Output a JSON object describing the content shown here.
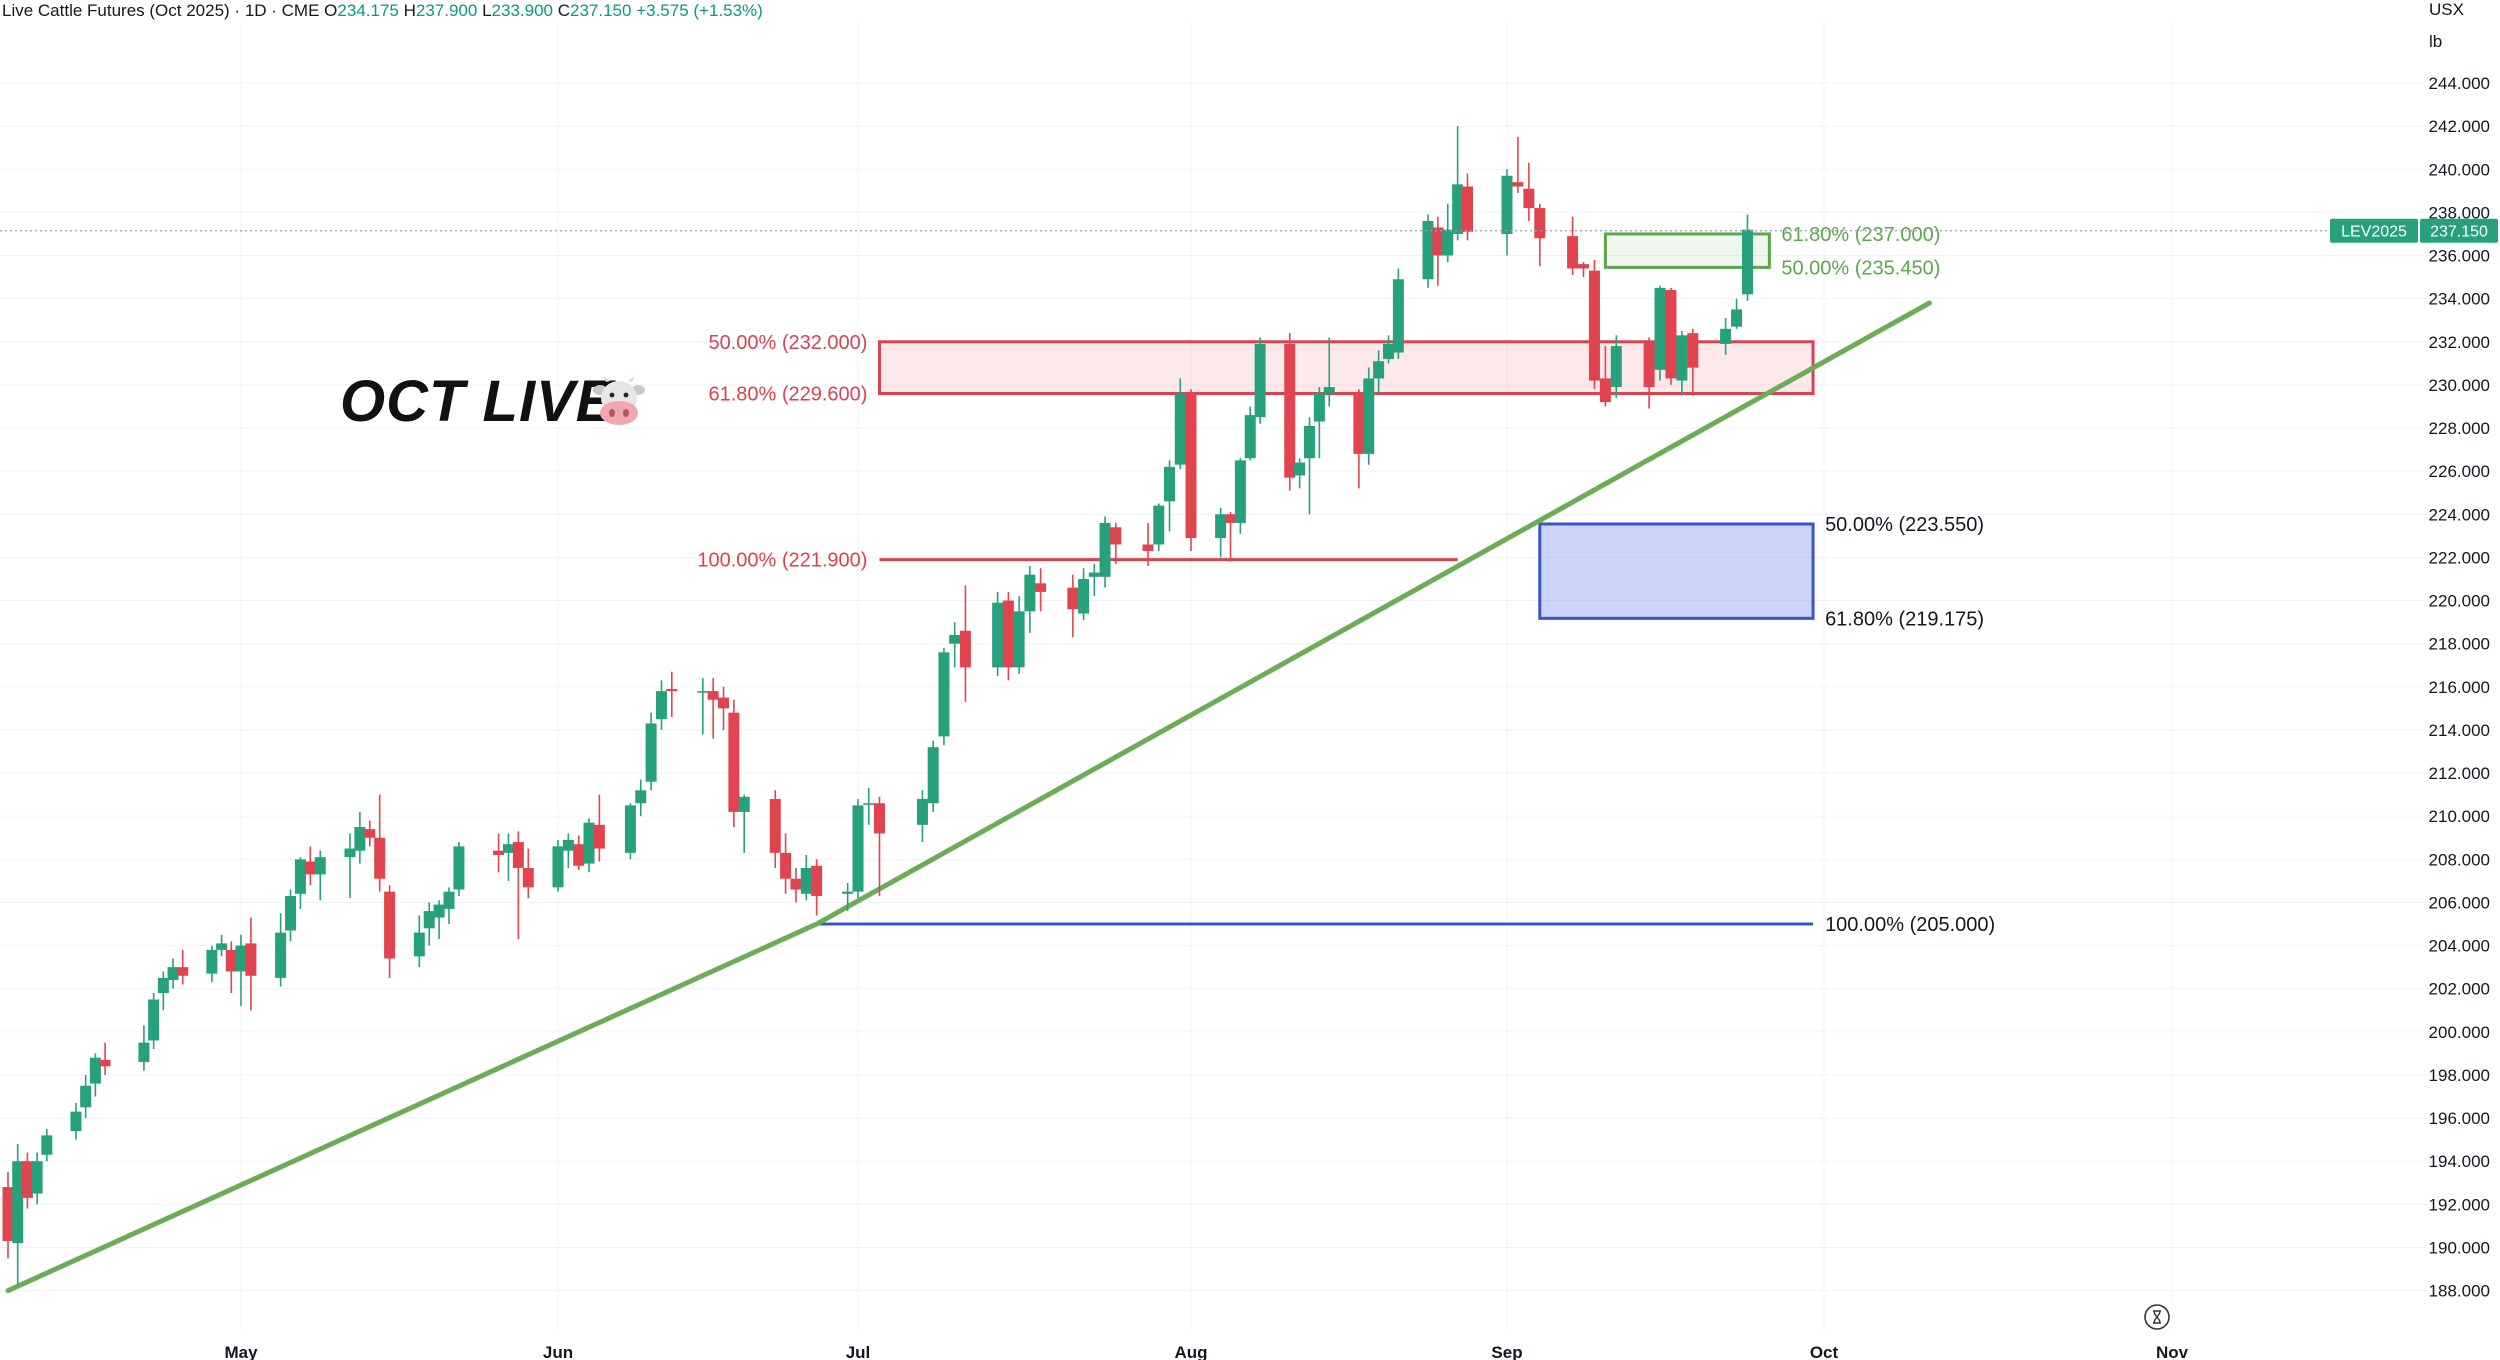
{
  "header": {
    "symbol": "Live Cattle Futures (Oct 2025) · 1D · CME",
    "open_label": "O",
    "open": "234.175",
    "high_label": "H",
    "high": "237.900",
    "low_label": "L",
    "low": "233.900",
    "close_label": "C",
    "close": "237.150",
    "change": "+3.575 (+1.53%)"
  },
  "watermark": "OCT LIVE",
  "units": {
    "top": "USX",
    "bottom": "lb"
  },
  "price_tag": {
    "name": "LEV2025",
    "value": "237.150",
    "price": 237.15
  },
  "colors": {
    "up": "#26a17b",
    "down": "#e0454f",
    "red_zone": "#d9434f",
    "green_zone": "#5ca74d",
    "blue_zone": "#3a55c8",
    "trend": "#6aad55"
  },
  "chart_data": {
    "type": "candlestick",
    "title": "Live Cattle Futures (Oct 2025) · 1D · CME",
    "ylim": [
      187,
      245
    ],
    "y_ticks": [
      "188.000",
      "190.000",
      "192.000",
      "194.000",
      "196.000",
      "198.000",
      "200.000",
      "202.000",
      "204.000",
      "206.000",
      "208.000",
      "210.000",
      "212.000",
      "214.000",
      "216.000",
      "218.000",
      "220.000",
      "222.000",
      "224.000",
      "226.000",
      "228.000",
      "230.000",
      "232.000",
      "234.000",
      "236.000",
      "238.000",
      "240.000",
      "242.000",
      "244.000"
    ],
    "x_ticks": [
      {
        "label": "May",
        "date": "2025-05-01"
      },
      {
        "label": "Jun",
        "date": "2025-06-02"
      },
      {
        "label": "Jul",
        "date": "2025-07-01"
      },
      {
        "label": "Aug",
        "date": "2025-08-01"
      },
      {
        "label": "Sep",
        "date": "2025-09-02"
      },
      {
        "label": "Oct",
        "date": "2025-10-01"
      },
      {
        "label": "Nov",
        "date": "2025-11-03"
      }
    ],
    "candles": [
      {
        "date": "2025-04-07",
        "o": 192.8,
        "h": 193.5,
        "l": 189.5,
        "c": 190.3
      },
      {
        "date": "2025-04-08",
        "o": 190.2,
        "h": 194.8,
        "l": 188.3,
        "c": 194.0
      },
      {
        "date": "2025-04-09",
        "o": 194.0,
        "h": 194.4,
        "l": 191.8,
        "c": 192.3
      },
      {
        "date": "2025-04-10",
        "o": 192.5,
        "h": 194.4,
        "l": 192.0,
        "c": 194.0
      },
      {
        "date": "2025-04-11",
        "o": 194.3,
        "h": 195.5,
        "l": 194.0,
        "c": 195.2
      },
      {
        "date": "2025-04-14",
        "o": 195.4,
        "h": 196.7,
        "l": 195.0,
        "c": 196.3
      },
      {
        "date": "2025-04-15",
        "o": 196.5,
        "h": 198.0,
        "l": 196.0,
        "c": 197.5
      },
      {
        "date": "2025-04-16",
        "o": 197.6,
        "h": 199.0,
        "l": 197.0,
        "c": 198.8
      },
      {
        "date": "2025-04-17",
        "o": 198.7,
        "h": 199.5,
        "l": 198.0,
        "c": 198.4
      },
      {
        "date": "2025-04-21",
        "o": 198.6,
        "h": 200.3,
        "l": 198.2,
        "c": 199.5
      },
      {
        "date": "2025-04-22",
        "o": 199.6,
        "h": 201.8,
        "l": 199.2,
        "c": 201.5
      },
      {
        "date": "2025-04-23",
        "o": 201.8,
        "h": 202.8,
        "l": 201.0,
        "c": 202.5
      },
      {
        "date": "2025-04-24",
        "o": 202.4,
        "h": 203.4,
        "l": 202.0,
        "c": 203.0
      },
      {
        "date": "2025-04-25",
        "o": 203.0,
        "h": 203.8,
        "l": 202.2,
        "c": 202.6
      },
      {
        "date": "2025-04-28",
        "o": 202.7,
        "h": 204.0,
        "l": 202.3,
        "c": 203.8
      },
      {
        "date": "2025-04-29",
        "o": 203.8,
        "h": 204.5,
        "l": 203.5,
        "c": 204.1
      },
      {
        "date": "2025-04-30",
        "o": 203.8,
        "h": 204.2,
        "l": 201.8,
        "c": 202.8
      },
      {
        "date": "2025-05-01",
        "o": 202.8,
        "h": 204.5,
        "l": 201.2,
        "c": 204.0
      },
      {
        "date": "2025-05-02",
        "o": 204.1,
        "h": 205.3,
        "l": 201.0,
        "c": 202.6
      },
      {
        "date": "2025-05-05",
        "o": 202.5,
        "h": 205.5,
        "l": 202.1,
        "c": 204.6
      },
      {
        "date": "2025-05-06",
        "o": 204.7,
        "h": 206.6,
        "l": 204.2,
        "c": 206.3
      },
      {
        "date": "2025-05-07",
        "o": 206.4,
        "h": 208.1,
        "l": 205.7,
        "c": 208.0
      },
      {
        "date": "2025-05-08",
        "o": 207.9,
        "h": 208.6,
        "l": 206.8,
        "c": 207.3
      },
      {
        "date": "2025-05-09",
        "o": 207.3,
        "h": 208.4,
        "l": 206.1,
        "c": 208.1
      },
      {
        "date": "2025-05-12",
        "o": 208.1,
        "h": 209.2,
        "l": 206.2,
        "c": 208.5
      },
      {
        "date": "2025-05-13",
        "o": 208.4,
        "h": 210.2,
        "l": 207.8,
        "c": 209.5
      },
      {
        "date": "2025-05-14",
        "o": 209.4,
        "h": 209.8,
        "l": 208.6,
        "c": 209.0
      },
      {
        "date": "2025-05-15",
        "o": 209.0,
        "h": 211.0,
        "l": 206.5,
        "c": 207.1
      },
      {
        "date": "2025-05-16",
        "o": 206.5,
        "h": 206.8,
        "l": 202.5,
        "c": 203.4
      },
      {
        "date": "2025-05-19",
        "o": 203.5,
        "h": 205.4,
        "l": 203.0,
        "c": 204.6
      },
      {
        "date": "2025-05-20",
        "o": 204.8,
        "h": 206.0,
        "l": 204.0,
        "c": 205.6
      },
      {
        "date": "2025-05-21",
        "o": 205.3,
        "h": 206.1,
        "l": 204.3,
        "c": 205.9
      },
      {
        "date": "2025-05-22",
        "o": 205.7,
        "h": 206.7,
        "l": 205.0,
        "c": 206.5
      },
      {
        "date": "2025-05-23",
        "o": 206.6,
        "h": 208.8,
        "l": 206.3,
        "c": 208.6
      },
      {
        "date": "2025-05-27",
        "o": 208.4,
        "h": 209.2,
        "l": 207.4,
        "c": 208.2
      },
      {
        "date": "2025-05-28",
        "o": 208.3,
        "h": 209.2,
        "l": 207.0,
        "c": 208.7
      },
      {
        "date": "2025-05-29",
        "o": 208.8,
        "h": 209.3,
        "l": 204.3,
        "c": 207.6
      },
      {
        "date": "2025-05-30",
        "o": 207.6,
        "h": 208.5,
        "l": 206.2,
        "c": 206.7
      },
      {
        "date": "2025-06-02",
        "o": 206.7,
        "h": 208.9,
        "l": 206.5,
        "c": 208.6
      },
      {
        "date": "2025-06-03",
        "o": 208.4,
        "h": 209.2,
        "l": 207.6,
        "c": 208.9
      },
      {
        "date": "2025-06-04",
        "o": 208.7,
        "h": 209.1,
        "l": 207.5,
        "c": 207.7
      },
      {
        "date": "2025-06-05",
        "o": 207.8,
        "h": 209.9,
        "l": 207.4,
        "c": 209.7
      },
      {
        "date": "2025-06-06",
        "o": 209.6,
        "h": 211.0,
        "l": 207.9,
        "c": 208.5
      },
      {
        "date": "2025-06-09",
        "o": 208.3,
        "h": 210.6,
        "l": 208.0,
        "c": 210.5
      },
      {
        "date": "2025-06-10",
        "o": 210.6,
        "h": 211.7,
        "l": 210.0,
        "c": 211.2
      },
      {
        "date": "2025-06-11",
        "o": 211.6,
        "h": 214.8,
        "l": 211.2,
        "c": 214.3
      },
      {
        "date": "2025-06-12",
        "o": 214.5,
        "h": 216.3,
        "l": 214.0,
        "c": 215.8
      },
      {
        "date": "2025-06-13",
        "o": 215.9,
        "h": 216.7,
        "l": 214.6,
        "c": 215.8
      },
      {
        "date": "2025-06-16",
        "o": 215.8,
        "h": 216.4,
        "l": 213.8,
        "c": 215.8
      },
      {
        "date": "2025-06-17",
        "o": 215.8,
        "h": 216.4,
        "l": 213.6,
        "c": 215.4
      },
      {
        "date": "2025-06-18",
        "o": 215.5,
        "h": 216.0,
        "l": 214.0,
        "c": 215.0
      },
      {
        "date": "2025-06-19",
        "o": 214.8,
        "h": 215.4,
        "l": 209.5,
        "c": 210.2
      },
      {
        "date": "2025-06-20",
        "o": 210.2,
        "h": 211.0,
        "l": 208.3,
        "c": 210.9
      },
      {
        "date": "2025-06-23",
        "o": 210.8,
        "h": 211.2,
        "l": 207.6,
        "c": 208.3
      },
      {
        "date": "2025-06-24",
        "o": 208.3,
        "h": 209.2,
        "l": 206.4,
        "c": 207.1
      },
      {
        "date": "2025-06-25",
        "o": 207.1,
        "h": 207.6,
        "l": 206.0,
        "c": 206.6
      },
      {
        "date": "2025-06-26",
        "o": 206.4,
        "h": 208.2,
        "l": 206.1,
        "c": 207.6
      },
      {
        "date": "2025-06-27",
        "o": 207.7,
        "h": 208.0,
        "l": 205.4,
        "c": 206.3
      },
      {
        "date": "2025-06-30",
        "o": 206.4,
        "h": 206.9,
        "l": 205.6,
        "c": 206.5
      },
      {
        "date": "2025-07-01",
        "o": 206.5,
        "h": 210.8,
        "l": 206.2,
        "c": 210.5
      },
      {
        "date": "2025-07-02",
        "o": 210.6,
        "h": 211.3,
        "l": 209.6,
        "c": 210.6
      },
      {
        "date": "2025-07-03",
        "o": 210.6,
        "h": 210.9,
        "l": 206.3,
        "c": 209.2
      },
      {
        "date": "2025-07-07",
        "o": 209.6,
        "h": 211.2,
        "l": 208.8,
        "c": 210.8
      },
      {
        "date": "2025-07-08",
        "o": 210.6,
        "h": 213.5,
        "l": 210.2,
        "c": 213.2
      },
      {
        "date": "2025-07-09",
        "o": 213.7,
        "h": 217.8,
        "l": 213.3,
        "c": 217.6
      },
      {
        "date": "2025-07-10",
        "o": 218.0,
        "h": 219.0,
        "l": 216.9,
        "c": 218.4
      },
      {
        "date": "2025-07-11",
        "o": 218.6,
        "h": 220.7,
        "l": 215.3,
        "c": 216.9
      },
      {
        "date": "2025-07-14",
        "o": 216.9,
        "h": 220.4,
        "l": 216.5,
        "c": 219.9
      },
      {
        "date": "2025-07-15",
        "o": 220.0,
        "h": 220.4,
        "l": 216.3,
        "c": 216.9
      },
      {
        "date": "2025-07-16",
        "o": 216.9,
        "h": 220.2,
        "l": 216.6,
        "c": 219.5
      },
      {
        "date": "2025-07-17",
        "o": 219.5,
        "h": 221.6,
        "l": 218.5,
        "c": 221.2
      },
      {
        "date": "2025-07-18",
        "o": 220.8,
        "h": 221.5,
        "l": 219.5,
        "c": 220.4
      },
      {
        "date": "2025-07-21",
        "o": 220.6,
        "h": 221.2,
        "l": 218.3,
        "c": 219.6
      },
      {
        "date": "2025-07-22",
        "o": 219.4,
        "h": 221.5,
        "l": 219.1,
        "c": 221.0
      },
      {
        "date": "2025-07-23",
        "o": 221.1,
        "h": 221.7,
        "l": 220.2,
        "c": 221.3
      },
      {
        "date": "2025-07-24",
        "o": 221.1,
        "h": 223.9,
        "l": 220.6,
        "c": 223.6
      },
      {
        "date": "2025-07-25",
        "o": 223.4,
        "h": 223.6,
        "l": 221.7,
        "c": 222.6
      },
      {
        "date": "2025-07-28",
        "o": 222.6,
        "h": 223.6,
        "l": 221.6,
        "c": 222.3
      },
      {
        "date": "2025-07-29",
        "o": 222.6,
        "h": 224.5,
        "l": 222.3,
        "c": 224.4
      },
      {
        "date": "2025-07-30",
        "o": 224.6,
        "h": 226.5,
        "l": 223.2,
        "c": 226.2
      },
      {
        "date": "2025-07-31",
        "o": 226.3,
        "h": 230.3,
        "l": 226.1,
        "c": 229.6
      },
      {
        "date": "2025-08-01",
        "o": 229.6,
        "h": 229.8,
        "l": 222.3,
        "c": 222.9
      },
      {
        "date": "2025-08-04",
        "o": 222.9,
        "h": 224.3,
        "l": 222.0,
        "c": 224.0
      },
      {
        "date": "2025-08-05",
        "o": 224.0,
        "h": 224.1,
        "l": 221.8,
        "c": 223.6
      },
      {
        "date": "2025-08-06",
        "o": 223.6,
        "h": 226.6,
        "l": 223.1,
        "c": 226.5
      },
      {
        "date": "2025-08-07",
        "o": 226.6,
        "h": 229.0,
        "l": 226.5,
        "c": 228.6
      },
      {
        "date": "2025-08-08",
        "o": 228.5,
        "h": 232.2,
        "l": 228.2,
        "c": 231.9
      },
      {
        "date": "2025-08-11",
        "o": 231.9,
        "h": 232.4,
        "l": 225.1,
        "c": 225.7
      },
      {
        "date": "2025-08-12",
        "o": 225.8,
        "h": 226.6,
        "l": 225.2,
        "c": 226.4
      },
      {
        "date": "2025-08-13",
        "o": 226.6,
        "h": 228.5,
        "l": 224.0,
        "c": 228.1
      },
      {
        "date": "2025-08-14",
        "o": 228.3,
        "h": 229.9,
        "l": 226.6,
        "c": 229.6
      },
      {
        "date": "2025-08-15",
        "o": 229.6,
        "h": 232.2,
        "l": 229.0,
        "c": 229.9
      },
      {
        "date": "2025-08-18",
        "o": 229.6,
        "h": 229.8,
        "l": 225.2,
        "c": 226.8
      },
      {
        "date": "2025-08-19",
        "o": 226.8,
        "h": 230.8,
        "l": 226.3,
        "c": 230.3
      },
      {
        "date": "2025-08-20",
        "o": 230.3,
        "h": 231.6,
        "l": 229.6,
        "c": 231.1
      },
      {
        "date": "2025-08-21",
        "o": 231.2,
        "h": 232.3,
        "l": 231.0,
        "c": 231.9
      },
      {
        "date": "2025-08-22",
        "o": 231.5,
        "h": 235.4,
        "l": 231.2,
        "c": 234.9
      },
      {
        "date": "2025-08-25",
        "o": 234.9,
        "h": 237.9,
        "l": 234.5,
        "c": 237.6
      },
      {
        "date": "2025-08-26",
        "o": 237.3,
        "h": 237.8,
        "l": 234.6,
        "c": 236.0
      },
      {
        "date": "2025-08-27",
        "o": 236.0,
        "h": 238.4,
        "l": 235.7,
        "c": 237.2
      },
      {
        "date": "2025-08-28",
        "o": 237.0,
        "h": 242.0,
        "l": 236.7,
        "c": 239.3
      },
      {
        "date": "2025-08-29",
        "o": 239.2,
        "h": 239.8,
        "l": 236.7,
        "c": 237.1
      },
      {
        "date": "2025-09-02",
        "o": 237.0,
        "h": 240.0,
        "l": 236.0,
        "c": 239.7
      },
      {
        "date": "2025-09-03",
        "o": 239.4,
        "h": 241.5,
        "l": 238.9,
        "c": 239.2
      },
      {
        "date": "2025-09-04",
        "o": 239.1,
        "h": 240.3,
        "l": 237.6,
        "c": 238.2
      },
      {
        "date": "2025-09-05",
        "o": 238.2,
        "h": 238.4,
        "l": 235.5,
        "c": 236.8
      },
      {
        "date": "2025-09-08",
        "o": 236.9,
        "h": 237.8,
        "l": 235.1,
        "c": 235.4
      },
      {
        "date": "2025-09-09",
        "o": 235.6,
        "h": 235.7,
        "l": 235.0,
        "c": 235.4
      },
      {
        "date": "2025-09-10",
        "o": 235.3,
        "h": 235.8,
        "l": 229.8,
        "c": 230.2
      },
      {
        "date": "2025-09-11",
        "o": 230.3,
        "h": 231.8,
        "l": 229.0,
        "c": 229.2
      },
      {
        "date": "2025-09-12",
        "o": 229.9,
        "h": 232.3,
        "l": 229.4,
        "c": 231.8
      },
      {
        "date": "2025-09-15",
        "o": 232.0,
        "h": 232.2,
        "l": 228.9,
        "c": 229.9
      },
      {
        "date": "2025-09-16",
        "o": 230.7,
        "h": 234.6,
        "l": 230.2,
        "c": 234.5
      },
      {
        "date": "2025-09-17",
        "o": 234.4,
        "h": 234.5,
        "l": 230.0,
        "c": 230.3
      },
      {
        "date": "2025-09-18",
        "o": 230.2,
        "h": 232.5,
        "l": 229.5,
        "c": 232.3
      },
      {
        "date": "2025-09-19",
        "o": 232.4,
        "h": 232.6,
        "l": 229.5,
        "c": 230.8
      },
      {
        "date": "2025-09-22",
        "o": 231.9,
        "h": 233.1,
        "l": 231.4,
        "c": 232.6
      },
      {
        "date": "2025-09-23",
        "o": 232.7,
        "h": 234.0,
        "l": 232.6,
        "c": 233.5
      },
      {
        "date": "2025-09-24",
        "o": 234.2,
        "h": 237.9,
        "l": 233.9,
        "c": 237.2
      }
    ],
    "trendline": [
      {
        "date": "2025-04-07",
        "price": 188.0
      },
      {
        "date": "2025-06-27",
        "price": 205.0
      },
      {
        "date": "2025-10-11",
        "price": 233.8
      }
    ],
    "fib_levels": [
      {
        "label": "50.00% (232.000)",
        "price": 232.0,
        "group": "red"
      },
      {
        "label": "61.80% (229.600)",
        "price": 229.6,
        "group": "red"
      },
      {
        "label": "100.00% (221.900)",
        "price": 221.9,
        "group": "red"
      },
      {
        "label": "61.80% (237.000)",
        "price": 237.0,
        "group": "green"
      },
      {
        "label": "50.00% (235.450)",
        "price": 235.45,
        "group": "green"
      },
      {
        "label": "50.00% (223.550)",
        "price": 223.55,
        "group": "blue"
      },
      {
        "label": "61.80% (219.175)",
        "price": 219.175,
        "group": "blue"
      },
      {
        "label": "100.00% (205.000)",
        "price": 205.0,
        "group": "blue"
      }
    ],
    "zones": [
      {
        "group": "red",
        "from_date": "2025-07-03",
        "to_date": "2025-09-30",
        "top": 232.0,
        "bottom": 229.6
      },
      {
        "group": "green",
        "from_date": "2025-09-11",
        "to_date": "2025-09-26",
        "top": 237.0,
        "bottom": 235.45
      },
      {
        "group": "blue",
        "from_date": "2025-09-05",
        "to_date": "2025-09-30",
        "top": 223.55,
        "bottom": 219.175
      }
    ],
    "lines": [
      {
        "group": "red",
        "from_date": "2025-07-03",
        "to_date": "2025-08-28",
        "price": 221.9
      },
      {
        "group": "blue",
        "from_date": "2025-06-27",
        "to_date": "2025-09-30",
        "price": 205.0
      }
    ],
    "grid": true,
    "legend": "none"
  }
}
